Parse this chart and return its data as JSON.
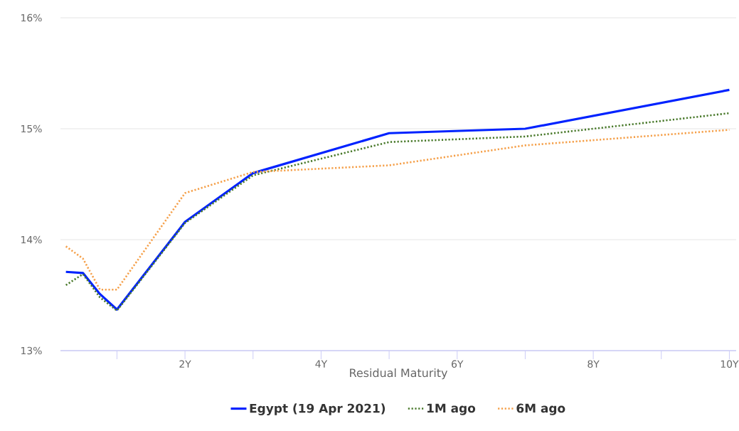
{
  "chart_data": {
    "type": "line",
    "xlabel": "Residual Maturity",
    "x": [
      0.25,
      0.5,
      0.75,
      1,
      2,
      3,
      5,
      7,
      10
    ],
    "series": [
      {
        "name": "Egypt (19 Apr 2021)",
        "color": "#0022ff",
        "line_style": "solid",
        "values": [
          13.71,
          13.7,
          13.51,
          13.37,
          14.16,
          14.6,
          14.96,
          15.0,
          15.35
        ]
      },
      {
        "name": "1M ago",
        "color": "#4a7a2c",
        "line_style": "dotted",
        "values": [
          13.59,
          13.69,
          13.48,
          13.36,
          14.15,
          14.58,
          14.88,
          14.93,
          15.14
        ]
      },
      {
        "name": "6M ago",
        "color": "#f5a04a",
        "line_style": "dotted",
        "values": [
          13.94,
          13.83,
          13.55,
          13.55,
          14.42,
          14.61,
          14.67,
          14.85,
          14.99
        ]
      }
    ],
    "xlim": [
      0.17,
      10.1
    ],
    "xticks": [
      {
        "value": 1,
        "label": null
      },
      {
        "value": 2,
        "label": "2Y"
      },
      {
        "value": 3,
        "label": null
      },
      {
        "value": 4,
        "label": "4Y"
      },
      {
        "value": 5,
        "label": null
      },
      {
        "value": 6,
        "label": "6Y"
      },
      {
        "value": 7,
        "label": null
      },
      {
        "value": 8,
        "label": "8Y"
      },
      {
        "value": 9,
        "label": null
      },
      {
        "value": 10,
        "label": "10Y"
      }
    ],
    "ylim": [
      13,
      16
    ],
    "yticks": [
      {
        "value": 13,
        "label": "13%"
      },
      {
        "value": 14,
        "label": "14%"
      },
      {
        "value": 15,
        "label": "15%"
      },
      {
        "value": 16,
        "label": "16%"
      }
    ],
    "grid": "y",
    "legend": "bottom",
    "marker": "none"
  }
}
